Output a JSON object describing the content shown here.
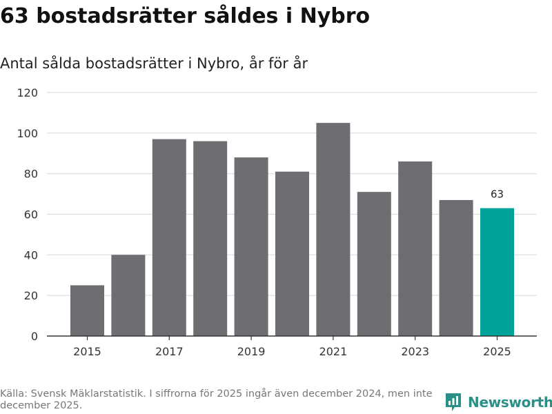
{
  "header": {
    "title": "63 bostadsrätter såldes i Nybro",
    "subtitle": "Antal sålda bostadsrätter i Nybro, år för år"
  },
  "chart_data": {
    "type": "bar",
    "title": "63 bostadsrätter såldes i Nybro",
    "subtitle": "Antal sålda bostadsrätter i Nybro, år för år",
    "categories": [
      "2015",
      "2016",
      "2017",
      "2018",
      "2019",
      "2020",
      "2021",
      "2022",
      "2023",
      "2024",
      "2025"
    ],
    "values": [
      25,
      40,
      97,
      96,
      88,
      81,
      105,
      71,
      86,
      67,
      63
    ],
    "x_tick_labels": [
      "2015",
      "2017",
      "2019",
      "2021",
      "2023",
      "2025"
    ],
    "y_ticks": [
      0,
      20,
      40,
      60,
      80,
      100,
      120
    ],
    "ylim": [
      0,
      120
    ],
    "grid": true,
    "highlight": {
      "category": "2025",
      "label": "63"
    },
    "colors": {
      "bar": "#6e6d72",
      "highlight": "#00a39a",
      "grid": "#dddddd",
      "axis": "#333333"
    }
  },
  "footer": {
    "source": "Källa: Svensk Mäklarstatistik. I siffrorna för 2025 ingår även december 2024, men inte december 2025."
  },
  "brand": {
    "name": "Newsworthy",
    "icon": "newsworthy-logo-icon",
    "color": "#2a8f86"
  }
}
